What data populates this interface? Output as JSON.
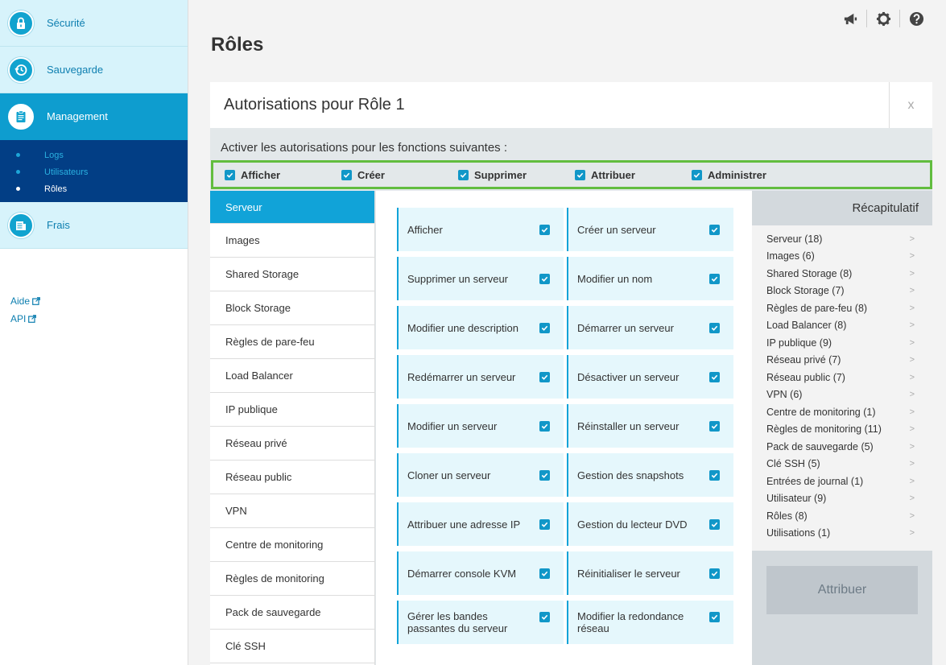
{
  "sidebar": {
    "items": [
      {
        "label": "Sécurité",
        "icon": "lock-icon"
      },
      {
        "label": "Sauvegarde",
        "icon": "history-icon"
      },
      {
        "label": "Management",
        "icon": "clipboard-icon"
      },
      {
        "label": "Frais",
        "icon": "receipt-icon"
      }
    ],
    "subitems": [
      {
        "label": "Logs"
      },
      {
        "label": "Utilisateurs"
      },
      {
        "label": "Rôles"
      }
    ],
    "links": [
      {
        "label": "Aide"
      },
      {
        "label": "API"
      }
    ]
  },
  "header": {
    "icons": [
      "megaphone-icon",
      "gear-icon",
      "help-icon"
    ]
  },
  "page": {
    "title": "Rôles"
  },
  "panel": {
    "title": "Autorisations pour Rôle 1",
    "close_label": "x",
    "enable_text": "Activer les autorisations pour les fonctions suivantes :",
    "global_permissions": [
      {
        "label": "Afficher",
        "checked": true
      },
      {
        "label": "Créer",
        "checked": true
      },
      {
        "label": "Supprimer",
        "checked": true
      },
      {
        "label": "Attribuer",
        "checked": true
      },
      {
        "label": "Administrer",
        "checked": true
      }
    ],
    "categories": [
      "Serveur",
      "Images",
      "Shared Storage",
      "Block Storage",
      "Règles de pare-feu",
      "Load Balancer",
      "IP publique",
      "Réseau privé",
      "Réseau public",
      "VPN",
      "Centre de monitoring",
      "Règles de monitoring",
      "Pack de sauvegarde",
      "Clé SSH"
    ],
    "selected_category": "Serveur",
    "permissions": [
      {
        "label": "Afficher",
        "checked": true
      },
      {
        "label": "Créer un serveur",
        "checked": true
      },
      {
        "label": "Supprimer un serveur",
        "checked": true
      },
      {
        "label": "Modifier un nom",
        "checked": true
      },
      {
        "label": "Modifier une description",
        "checked": true
      },
      {
        "label": "Démarrer un serveur",
        "checked": true
      },
      {
        "label": "Redémarrer un serveur",
        "checked": true
      },
      {
        "label": "Désactiver un serveur",
        "checked": true
      },
      {
        "label": "Modifier un serveur",
        "checked": true
      },
      {
        "label": "Réinstaller un serveur",
        "checked": true
      },
      {
        "label": "Cloner un serveur",
        "checked": true
      },
      {
        "label": "Gestion des snapshots",
        "checked": true
      },
      {
        "label": "Attribuer une adresse IP",
        "checked": true
      },
      {
        "label": "Gestion du lecteur DVD",
        "checked": true
      },
      {
        "label": "Démarrer console KVM",
        "checked": true
      },
      {
        "label": "Réinitialiser le serveur",
        "checked": true
      },
      {
        "label": "Gérer les bandes passantes du serveur",
        "checked": true
      },
      {
        "label": "Modifier la redondance réseau",
        "checked": true
      }
    ],
    "summary": {
      "title": "Récapitulatif",
      "chevron": ">",
      "items": [
        "Serveur (18)",
        "Images (6)",
        "Shared Storage (8)",
        "Block Storage (7)",
        "Règles de pare-feu (8)",
        "Load Balancer (8)",
        "IP publique (9)",
        "Réseau privé (7)",
        "Réseau public (7)",
        "VPN (6)",
        "Centre de monitoring (1)",
        "Règles de monitoring (11)",
        "Pack de sauvegarde (5)",
        "Clé SSH (5)",
        "Entrées de journal (1)",
        "Utilisateur (9)",
        "Rôles (8)",
        "Utilisations (1)"
      ],
      "assign_label": "Attribuer"
    }
  },
  "colors": {
    "accent": "#11a3d8",
    "nav_dark": "#023e85",
    "highlight_border": "#62bd3f"
  }
}
